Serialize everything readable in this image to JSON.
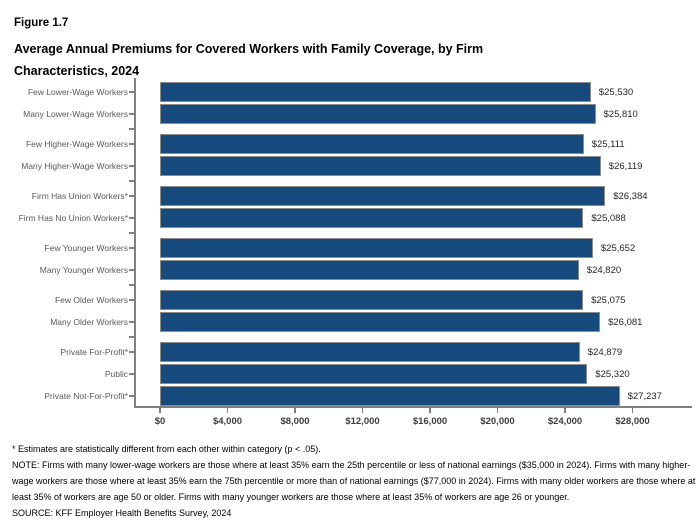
{
  "figure_label": "Figure 1.7",
  "title": "Average Annual Premiums for Covered Workers with Family Coverage, by Firm Characteristics, 2024",
  "chart_data": {
    "type": "bar",
    "orientation": "horizontal",
    "bar_color": "#174A7C",
    "bar_border_color": "#8C8C8C",
    "axis_color": "#808080",
    "xlim": [
      0,
      28000
    ],
    "x_ticks": [
      "$0",
      "$4,000",
      "$8,000",
      "$12,000",
      "$16,000",
      "$20,000",
      "$24,000",
      "$28,000"
    ],
    "x_tick_values": [
      0,
      4000,
      8000,
      12000,
      16000,
      20000,
      24000,
      28000
    ],
    "grid": false,
    "legend": "none",
    "groups": [
      {
        "bars": [
          {
            "label": "Few Lower-Wage Workers",
            "value": 25530,
            "value_label": "$25,530"
          },
          {
            "label": "Many Lower-Wage Workers",
            "value": 25810,
            "value_label": "$25,810"
          }
        ]
      },
      {
        "bars": [
          {
            "label": "Few Higher-Wage Workers",
            "value": 25111,
            "value_label": "$25,111"
          },
          {
            "label": "Many Higher-Wage Workers",
            "value": 26119,
            "value_label": "$26,119"
          }
        ]
      },
      {
        "bars": [
          {
            "label": "Firm Has Union Workers*",
            "value": 26384,
            "value_label": "$26,384"
          },
          {
            "label": "Firm Has No Union Workers*",
            "value": 25088,
            "value_label": "$25,088"
          }
        ]
      },
      {
        "bars": [
          {
            "label": "Few Younger Workers",
            "value": 25652,
            "value_label": "$25,652"
          },
          {
            "label": "Many Younger Workers",
            "value": 24820,
            "value_label": "$24,820"
          }
        ]
      },
      {
        "bars": [
          {
            "label": "Few Older Workers",
            "value": 25075,
            "value_label": "$25,075"
          },
          {
            "label": "Many Older Workers",
            "value": 26081,
            "value_label": "$26,081"
          }
        ]
      },
      {
        "bars": [
          {
            "label": "Private For-Profit*",
            "value": 24879,
            "value_label": "$24,879"
          },
          {
            "label": "Public",
            "value": 25320,
            "value_label": "$25,320"
          },
          {
            "label": "Private Not-For-Profit*",
            "value": 27237,
            "value_label": "$27,237"
          }
        ]
      }
    ]
  },
  "footnotes": {
    "significance": "* Estimates are statistically different from each other within category (p < .05).",
    "note": "NOTE: Firms with many lower-wage workers are those where at least 35% earn the 25th percentile or less of national earnings ($35,000 in 2024). Firms with many higher-wage workers are those where at least 35% earn the 75th percentile or more than of national earnings ($77,000 in 2024). Firms with many older workers are those where at least 35% of workers are age 50 or older. Firms with many younger workers are those where at least 35% of workers are age 26 or younger.",
    "source": "SOURCE: KFF Employer Health Benefits Survey, 2024"
  }
}
